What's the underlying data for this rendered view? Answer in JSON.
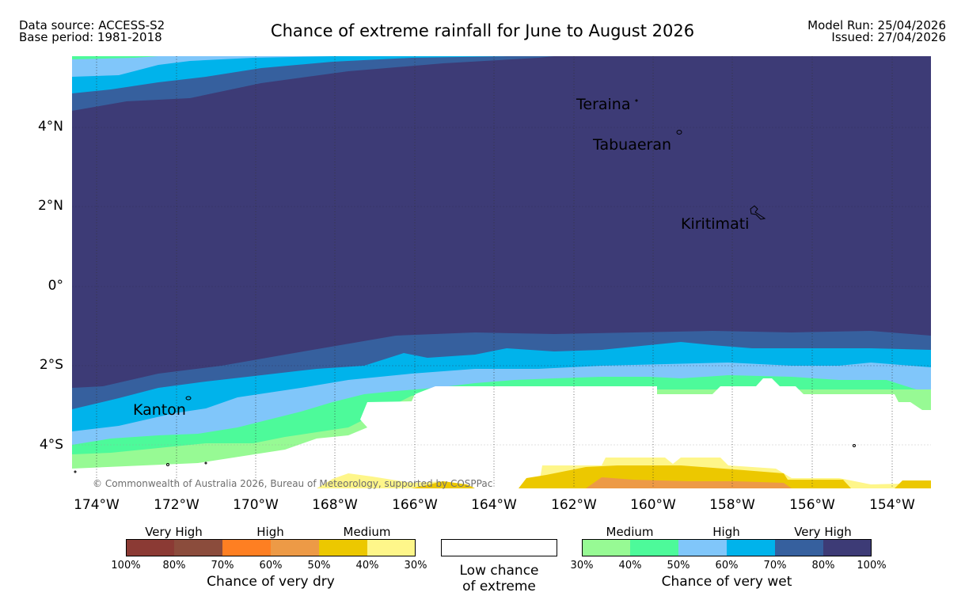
{
  "header": {
    "data_source": "Data source: ACCESS-S2",
    "base_period": "Base period: 1981-2018",
    "title": "Chance of extreme rainfall for June to August 2026",
    "model_run": "Model Run: 25/04/2026",
    "issued": "Issued: 27/04/2026"
  },
  "map": {
    "latitude_labels": [
      "4°N",
      "2°N",
      "0°",
      "2°S",
      "4°S"
    ],
    "longitude_labels": [
      "174°W",
      "172°W",
      "170°W",
      "168°W",
      "166°W",
      "164°W",
      "162°W",
      "160°W",
      "158°W",
      "156°W",
      "154°W"
    ],
    "places": {
      "teraina": "Teraina",
      "tabuaeran": "Tabuaeran",
      "kiritimati": "Kiritimati",
      "kanton": "Kanton"
    },
    "copyright": "© Commonwealth of Australia 2026, Bureau of Meteorology, supported by COSPPac"
  },
  "legend": {
    "dry": {
      "headings": [
        "Very High",
        "High",
        "Medium"
      ],
      "colors": [
        "#8b3a34",
        "#8b4c3c",
        "#fe7f22",
        "#ed9a46",
        "#ecc800",
        "#fef68a"
      ],
      "ticks": [
        "100%",
        "80%",
        "70%",
        "60%",
        "50%",
        "40%",
        "30%"
      ],
      "caption": "Chance of very dry"
    },
    "low": {
      "line1": "Low chance",
      "line2": "of extreme",
      "color": "#ffffff"
    },
    "wet": {
      "headings": [
        "Medium",
        "High",
        "Very High"
      ],
      "colors": [
        "#97fa94",
        "#4dfa9a",
        "#80c6fa",
        "#00b3eb",
        "#36609e",
        "#3d3b76"
      ],
      "ticks": [
        "30%",
        "40%",
        "50%",
        "60%",
        "70%",
        "80%",
        "100%"
      ],
      "caption": "Chance of very wet"
    }
  }
}
